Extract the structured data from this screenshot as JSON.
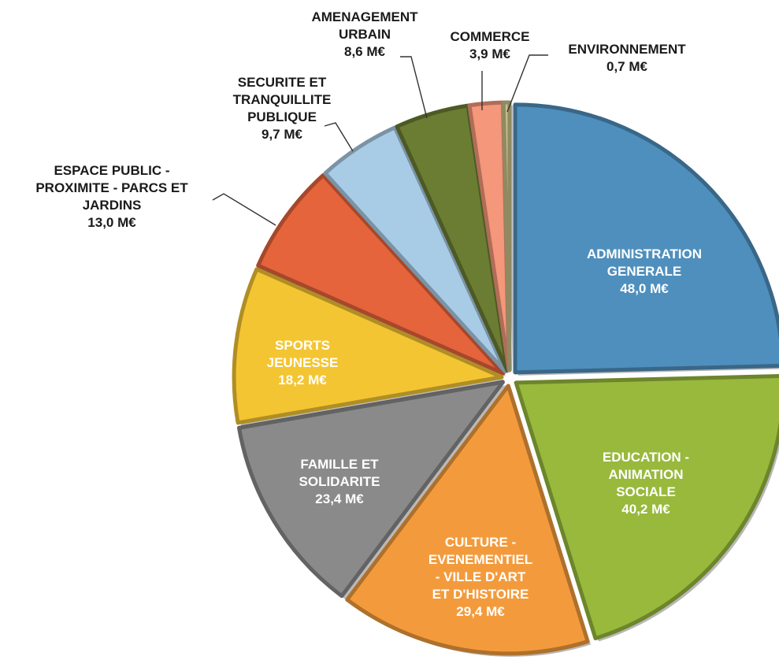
{
  "chart_data": {
    "type": "pie",
    "exploded": true,
    "slices": [
      {
        "name": "ADMINISTRATION GENERALE",
        "value": 48.0,
        "label": "48,0 M€",
        "color": "#4f8fbd",
        "label_position": "inside"
      },
      {
        "name": "EDUCATION - ANIMATION SOCIALE",
        "value": 40.2,
        "label": "40,2 M€",
        "color": "#98b93c",
        "label_position": "inside"
      },
      {
        "name": "CULTURE - EVENEMENTIEL - VILLE D'ART ET D'HISTOIRE",
        "value": 29.4,
        "label": "29,4 M€",
        "color": "#f39b3c",
        "label_position": "inside"
      },
      {
        "name": "FAMILLE ET SOLIDARITE",
        "value": 23.4,
        "label": "23,4 M€",
        "color": "#8a8a8a",
        "label_position": "inside"
      },
      {
        "name": "SPORTS JEUNESSE",
        "value": 18.2,
        "label": "18,2 M€",
        "color": "#f4c533",
        "label_position": "inside"
      },
      {
        "name": "ESPACE PUBLIC - PROXIMITE - PARCS ET JARDINS",
        "value": 13.0,
        "label": "13,0 M€",
        "color": "#e5643c",
        "label_position": "outside"
      },
      {
        "name": "SECURITE ET TRANQUILLITE PUBLIQUE",
        "value": 9.7,
        "label": "9,7 M€",
        "color": "#a9cce6",
        "label_position": "outside"
      },
      {
        "name": "AMENAGEMENT URBAIN",
        "value": 8.6,
        "label": "8,6 M€",
        "color": "#6b7d33",
        "label_position": "outside"
      },
      {
        "name": "COMMERCE",
        "value": 3.9,
        "label": "3,9 M€",
        "color": "#f4977a",
        "label_position": "outside"
      },
      {
        "name": "ENVIRONNEMENT",
        "value": 0.7,
        "label": "0,7 M€",
        "color": "#c8c08a",
        "label_position": "outside"
      }
    ]
  }
}
